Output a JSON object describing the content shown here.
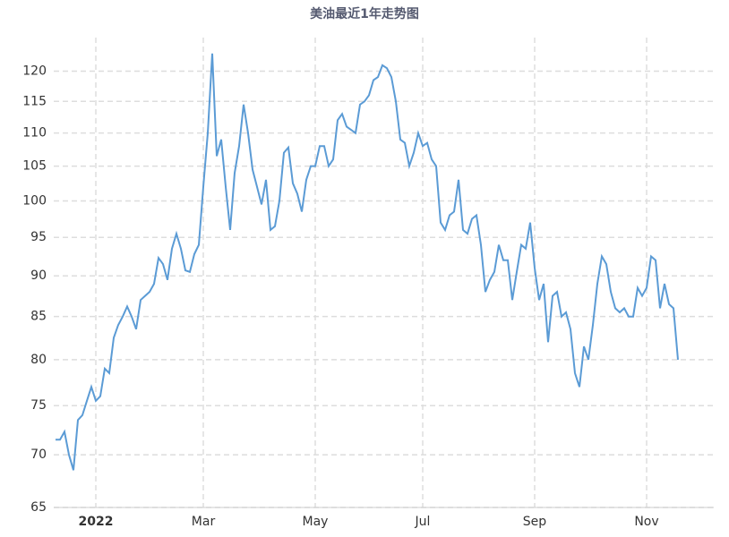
{
  "chart_data": {
    "type": "line",
    "title": "美油最近1年走势图",
    "categories": [
      null,
      null,
      null,
      null,
      null,
      null,
      null,
      null,
      null,
      "2022",
      null,
      null,
      null,
      null,
      null,
      null,
      null,
      null,
      null,
      null,
      null,
      null,
      null,
      null,
      null,
      null,
      null,
      null,
      null,
      null,
      null,
      null,
      null,
      "Mar",
      null,
      null,
      null,
      null,
      null,
      null,
      null,
      null,
      null,
      null,
      null,
      null,
      null,
      null,
      null,
      null,
      null,
      null,
      null,
      null,
      null,
      null,
      null,
      null,
      "May",
      null,
      null,
      null,
      null,
      null,
      null,
      null,
      null,
      null,
      null,
      null,
      null,
      null,
      null,
      null,
      null,
      null,
      null,
      null,
      null,
      null,
      null,
      null,
      "Jul",
      null,
      null,
      null,
      null,
      null,
      null,
      null,
      null,
      null,
      null,
      null,
      null,
      null,
      null,
      null,
      null,
      null,
      null,
      null,
      null,
      null,
      null,
      null,
      null,
      "Sep",
      null,
      null,
      null,
      null,
      null,
      null,
      null,
      null,
      null,
      null,
      null,
      null,
      null,
      null,
      null,
      null,
      null,
      null,
      null,
      null,
      null,
      null,
      null,
      null,
      "Nov",
      null,
      null,
      null,
      null,
      null,
      null,
      null
    ],
    "series": [
      {
        "color": "#5b9bd5",
        "values": [
          71.5,
          71.5,
          72.3,
          70,
          68.5,
          73.5,
          74,
          75.5,
          77,
          75.5,
          76,
          79,
          78.5,
          82.5,
          84,
          85,
          86.2,
          85,
          83.5,
          87,
          87.5,
          88,
          89,
          92.3,
          91.5,
          89.5,
          93.5,
          95.5,
          93.5,
          90.7,
          90.5,
          92.8,
          94,
          102,
          110,
          123,
          106.5,
          109,
          102,
          96,
          104,
          108,
          114.5,
          110,
          104.5,
          102,
          99.5,
          103,
          96,
          96.5,
          100,
          107,
          107.8,
          102.5,
          101,
          98.5,
          103,
          105,
          105,
          108,
          108,
          105,
          106,
          112,
          113,
          111,
          110.5,
          110,
          114.5,
          115,
          116,
          118.5,
          119,
          121,
          120.5,
          119,
          115,
          109,
          108.5,
          105,
          107,
          110,
          108,
          108.5,
          106,
          105,
          97,
          96,
          98,
          98.5,
          103,
          96,
          95.5,
          97.5,
          98,
          94,
          88,
          89.5,
          90.5,
          94,
          92,
          92,
          87,
          90.5,
          94,
          93.5,
          97,
          91,
          87,
          89,
          82,
          87.5,
          88,
          85,
          85.5,
          83.5,
          78.5,
          77,
          81.5,
          80,
          84,
          89,
          92.5,
          91.5,
          88,
          86,
          85.5,
          86,
          85,
          85,
          88.5,
          87.5,
          88.5,
          92.5,
          92,
          86,
          89,
          86.5,
          86,
          80
        ]
      }
    ],
    "ylim": [
      65,
      125
    ],
    "yticks": [
      65,
      70,
      75,
      80,
      85,
      90,
      95,
      100,
      105,
      110,
      115,
      120
    ],
    "log_scale": true,
    "grid": true
  }
}
